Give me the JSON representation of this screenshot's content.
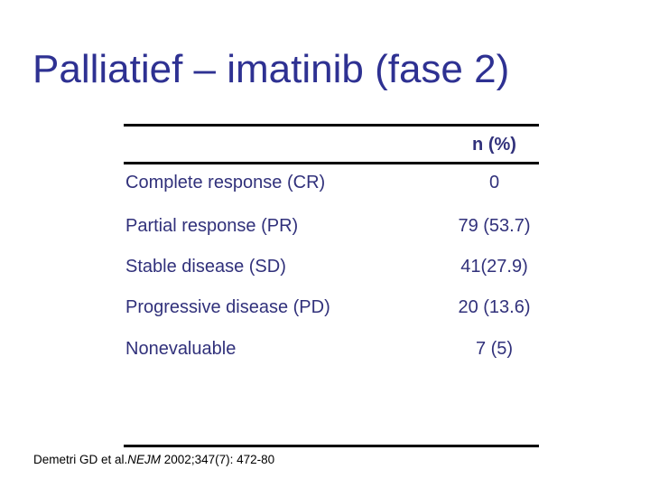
{
  "slide": {
    "title": "Palliatief – imatinib (fase 2)",
    "colors": {
      "background": "#FFFFFF",
      "title_text": "#2E3192",
      "table_text": "#31317B",
      "table_rule": "#000000",
      "citation_text": "#000000"
    }
  },
  "table": {
    "header": {
      "value_col": "n (%)"
    },
    "rows": [
      {
        "label": "Complete response (CR)",
        "value": "0"
      },
      {
        "label": "Partial response (PR)",
        "value": "79 (53.7)"
      },
      {
        "label": "Stable disease (SD)",
        "value": "41(27.9)"
      },
      {
        "label": "Progressive disease (PD)",
        "value": "20 (13.6)"
      },
      {
        "label": "Nonevaluable",
        "value": "7 (5)"
      }
    ]
  },
  "citation": {
    "prefix": "Demetri GD et al.",
    "journal_italic": "NEJM",
    "suffix": " 2002;347(7): 472-80"
  }
}
